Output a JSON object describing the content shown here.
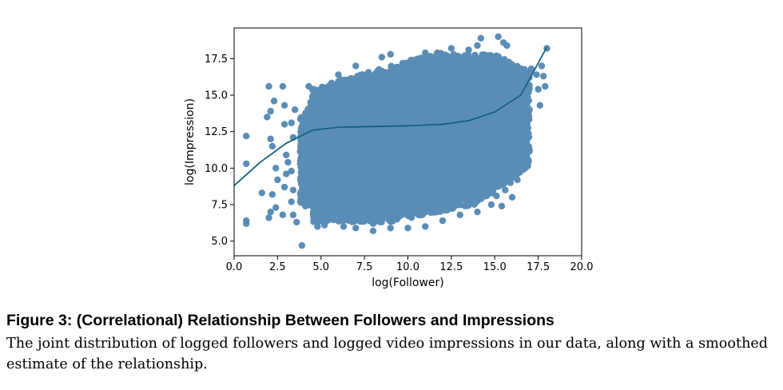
{
  "figure": {
    "title": "Figure 3: (Correlational) Relationship Between Followers and Impressions",
    "caption": "The joint distribution of logged followers and logged video impressions in our data, along with a smoothed estimate of the relationship."
  },
  "chart_data": {
    "type": "scatter",
    "xlabel": "log(Follower)",
    "ylabel": "log(Impression)",
    "xlim": [
      0,
      20
    ],
    "ylim": [
      4.0,
      19.6
    ],
    "xticks": [
      "0.0",
      "2.5",
      "5.0",
      "7.5",
      "10.0",
      "12.5",
      "15.0",
      "17.5",
      "20.0"
    ],
    "yticks": [
      "5.0",
      "7.5",
      "10.0",
      "12.5",
      "15.0",
      "17.5"
    ],
    "grid": false,
    "colors": {
      "points": "#5a8db6",
      "line": "#16607e"
    },
    "scatter": {
      "outliers": [
        [
          0.7,
          12.2
        ],
        [
          0.7,
          10.3
        ],
        [
          0.7,
          6.4
        ],
        [
          0.7,
          6.2
        ],
        [
          1.6,
          8.3
        ],
        [
          1.9,
          13.5
        ],
        [
          2.0,
          15.6
        ],
        [
          2.1,
          13.9
        ],
        [
          2.3,
          14.6
        ],
        [
          2.1,
          12.0
        ],
        [
          2.2,
          11.5
        ],
        [
          2.4,
          10.0
        ],
        [
          2.5,
          9.2
        ],
        [
          2.2,
          8.2
        ],
        [
          2.4,
          7.3
        ],
        [
          2.1,
          7.0
        ],
        [
          2.0,
          6.6
        ],
        [
          2.8,
          15.6
        ],
        [
          2.9,
          14.3
        ],
        [
          2.9,
          13.0
        ],
        [
          3.0,
          10.9
        ],
        [
          3.1,
          10.4
        ],
        [
          3.0,
          9.6
        ],
        [
          2.9,
          8.7
        ],
        [
          2.8,
          6.8
        ],
        [
          3.3,
          13.1
        ],
        [
          3.5,
          14.0
        ],
        [
          3.4,
          12.1
        ],
        [
          3.3,
          9.8
        ],
        [
          3.4,
          8.5
        ],
        [
          3.3,
          7.7
        ],
        [
          3.4,
          6.8
        ],
        [
          3.6,
          6.3
        ],
        [
          3.9,
          4.7
        ],
        [
          4.3,
          15.6
        ],
        [
          4.4,
          14.5
        ],
        [
          4.1,
          7.4
        ],
        [
          4.8,
          6.0
        ],
        [
          5.2,
          6.1
        ],
        [
          6.0,
          16.4
        ],
        [
          6.3,
          15.7
        ],
        [
          7.0,
          17.0
        ],
        [
          6.3,
          6.0
        ],
        [
          7.0,
          5.9
        ],
        [
          8.0,
          5.7
        ],
        [
          8.0,
          6.2
        ],
        [
          9.0,
          5.9
        ],
        [
          10.0,
          5.9
        ],
        [
          11.0,
          6.0
        ],
        [
          12.0,
          6.4
        ],
        [
          13.0,
          6.8
        ],
        [
          14.0,
          7.0
        ],
        [
          14.8,
          7.5
        ],
        [
          15.1,
          8.1
        ],
        [
          15.6,
          8.5
        ],
        [
          15.4,
          7.4
        ],
        [
          15.9,
          9.0
        ],
        [
          16.3,
          9.2
        ],
        [
          16.3,
          9.9
        ],
        [
          16.7,
          10.6
        ],
        [
          16.0,
          8.0
        ],
        [
          17.0,
          14.0
        ],
        [
          16.8,
          15.6
        ],
        [
          16.9,
          12.7
        ],
        [
          16.5,
          11.9
        ],
        [
          17.5,
          15.4
        ],
        [
          17.6,
          14.3
        ],
        [
          17.4,
          16.4
        ],
        [
          17.9,
          15.6
        ],
        [
          17.8,
          16.3
        ],
        [
          17.7,
          17.0
        ],
        [
          18.0,
          18.2
        ],
        [
          17.1,
          16.8
        ],
        [
          15.7,
          18.4
        ],
        [
          15.5,
          18.6
        ],
        [
          15.2,
          19.0
        ],
        [
          14.2,
          18.9
        ],
        [
          14.0,
          18.4
        ],
        [
          13.5,
          18.1
        ],
        [
          12.5,
          18.2
        ],
        [
          11.7,
          17.9
        ],
        [
          11.0,
          17.9
        ],
        [
          9.0,
          17.8
        ],
        [
          8.5,
          17.6
        ],
        [
          10.2,
          17.4
        ]
      ]
    },
    "series": [
      {
        "points": [
          [
            0,
            8.8
          ],
          [
            1.5,
            10.4
          ],
          [
            3.0,
            11.7
          ],
          [
            4.5,
            12.6
          ],
          [
            6.0,
            12.8
          ],
          [
            8.0,
            12.85
          ],
          [
            10.0,
            12.9
          ],
          [
            12.0,
            13.0
          ],
          [
            13.5,
            13.25
          ],
          [
            15.0,
            13.85
          ],
          [
            16.5,
            15.0
          ],
          [
            18.0,
            18.3
          ]
        ]
      }
    ]
  }
}
